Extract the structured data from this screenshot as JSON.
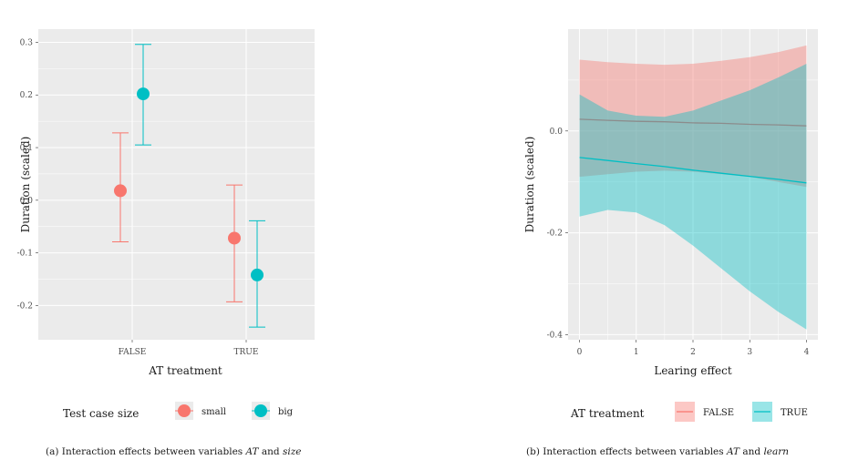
{
  "chart_data": [
    {
      "type": "scatter",
      "subtype": "point-errorbar",
      "caption_prefix": "(a) Interaction effects between variables ",
      "caption_var1": "AT",
      "caption_mid": " and ",
      "caption_var2": "size",
      "xlabel": "AT treatment",
      "ylabel": "Duration (scaled)",
      "categories": [
        "FALSE",
        "TRUE"
      ],
      "ylim": [
        -0.265,
        0.325
      ],
      "yticks": [
        -0.2,
        -0.1,
        0.0,
        0.1,
        0.2,
        0.3
      ],
      "ytick_labels": [
        "-0.2",
        "-0.1",
        "0.0",
        "0.1",
        "0.2",
        "0.3"
      ],
      "legend_title": "Test case size",
      "legend_position": "bottom",
      "series": [
        {
          "name": "small",
          "color": "#F8766D",
          "values": [
            0.018,
            -0.072
          ],
          "lower": [
            -0.079,
            -0.193
          ],
          "upper": [
            0.128,
            0.029
          ]
        },
        {
          "name": "big",
          "color": "#00BFC4",
          "values": [
            0.202,
            -0.142
          ],
          "lower": [
            0.105,
            -0.241
          ],
          "upper": [
            0.296,
            -0.039
          ]
        }
      ]
    },
    {
      "type": "line",
      "subtype": "line-ribbon",
      "caption_prefix": "(b) Interaction effects between variables ",
      "caption_var1": "AT",
      "caption_mid": " and ",
      "caption_var2": "learn",
      "xlabel": "Learing effect",
      "ylabel": "Duration (scaled)",
      "xlim": [
        -0.2,
        4.2
      ],
      "ylim": [
        -0.41,
        0.2
      ],
      "xticks": [
        0,
        1,
        2,
        3,
        4
      ],
      "xtick_labels": [
        "0",
        "1",
        "2",
        "3",
        "4"
      ],
      "yticks": [
        -0.4,
        -0.2,
        0.0
      ],
      "ytick_labels": [
        "-0.4",
        "-0.2",
        "0.0"
      ],
      "legend_title": "AT treatment",
      "legend_position": "bottom",
      "series": [
        {
          "name": "FALSE",
          "color": "#F8766D",
          "x": [
            0,
            0.5,
            1,
            1.5,
            2,
            2.5,
            3,
            3.5,
            4
          ],
          "y": [
            0.023,
            0.021,
            0.019,
            0.018,
            0.016,
            0.015,
            0.013,
            0.012,
            0.01
          ],
          "lower": [
            -0.09,
            -0.085,
            -0.08,
            -0.078,
            -0.08,
            -0.085,
            -0.09,
            -0.1,
            -0.11
          ],
          "upper": [
            0.14,
            0.135,
            0.132,
            0.13,
            0.132,
            0.138,
            0.145,
            0.155,
            0.168
          ]
        },
        {
          "name": "TRUE",
          "color": "#00BFC4",
          "x": [
            0,
            0.5,
            1,
            1.5,
            2,
            2.5,
            3,
            3.5,
            4
          ],
          "y": [
            -0.052,
            -0.058,
            -0.064,
            -0.07,
            -0.077,
            -0.083,
            -0.089,
            -0.095,
            -0.102
          ],
          "lower": [
            -0.168,
            -0.155,
            -0.16,
            -0.185,
            -0.225,
            -0.27,
            -0.315,
            -0.355,
            -0.39
          ],
          "upper": [
            0.072,
            0.04,
            0.03,
            0.028,
            0.04,
            0.06,
            0.08,
            0.105,
            0.132
          ]
        }
      ]
    }
  ]
}
